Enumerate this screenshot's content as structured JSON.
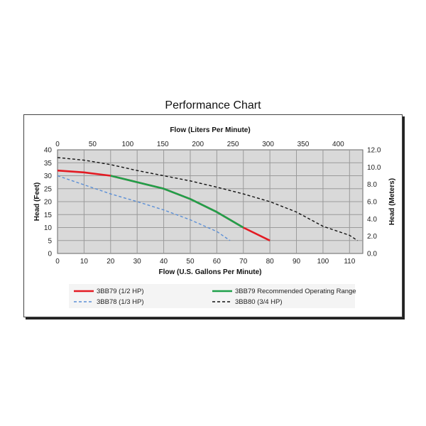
{
  "page": {
    "title": "Performance Chart"
  },
  "colors": {
    "red": "#e31b23",
    "green": "#1fa04a",
    "blue": "#5b8fd6",
    "black": "#111111",
    "plot_bg": "#d9d9d9",
    "grid": "#9a9a9a"
  },
  "chart_data": {
    "type": "line",
    "title": "Performance Chart",
    "xlabel": "Flow (U.S. Gallons Per Minute)",
    "x2label": "Flow (Liters Per Minute)",
    "ylabel": "Head (Feet)",
    "y2label": "Head (Meters)",
    "xlim": [
      0,
      115
    ],
    "ylim": [
      0,
      40
    ],
    "x2lim": [
      0,
      435
    ],
    "y2lim": [
      0,
      12.0
    ],
    "x_ticks": [
      "0",
      "10",
      "20",
      "30",
      "40",
      "50",
      "60",
      "70",
      "80",
      "90",
      "100",
      "110"
    ],
    "y_ticks": [
      "0",
      "5",
      "10",
      "15",
      "20",
      "25",
      "30",
      "35",
      "40"
    ],
    "x2_ticks": [
      "0",
      "50",
      "100",
      "150",
      "200",
      "250",
      "300",
      "350",
      "400"
    ],
    "y2_ticks": [
      "0.0",
      "2.0",
      "4.0",
      "6.0",
      "8.0",
      "10.0",
      "12.0"
    ],
    "grid": true,
    "series": [
      {
        "name": "3BB79 (1/2 HP)",
        "color": "#e31b23",
        "style": "solid",
        "x": [
          0,
          10,
          20,
          30,
          40,
          50,
          60,
          70,
          80
        ],
        "y": [
          32,
          31.3,
          30,
          27.5,
          25,
          21,
          16,
          10,
          5
        ]
      },
      {
        "name": "3BB79 Recommended Operating Range",
        "color": "#1fa04a",
        "style": "solid",
        "x": [
          20,
          30,
          40,
          50,
          60,
          70
        ],
        "y": [
          30,
          27.5,
          25,
          21,
          16,
          10
        ]
      },
      {
        "name": "3BB78 (1/3 HP)",
        "color": "#5b8fd6",
        "style": "dashed",
        "x": [
          0,
          10,
          20,
          30,
          40,
          50,
          60,
          65
        ],
        "y": [
          30,
          26.5,
          23,
          20,
          16.8,
          13,
          8.5,
          5
        ]
      },
      {
        "name": "3BB80 (3/4 HP)",
        "color": "#111111",
        "style": "dashed",
        "x": [
          0,
          10,
          20,
          30,
          40,
          50,
          60,
          70,
          80,
          90,
          100,
          110,
          113
        ],
        "y": [
          37,
          36,
          34.3,
          32,
          30,
          28,
          25.6,
          23,
          20,
          16,
          10.5,
          7,
          5
        ]
      }
    ],
    "legend_position": "bottom"
  }
}
